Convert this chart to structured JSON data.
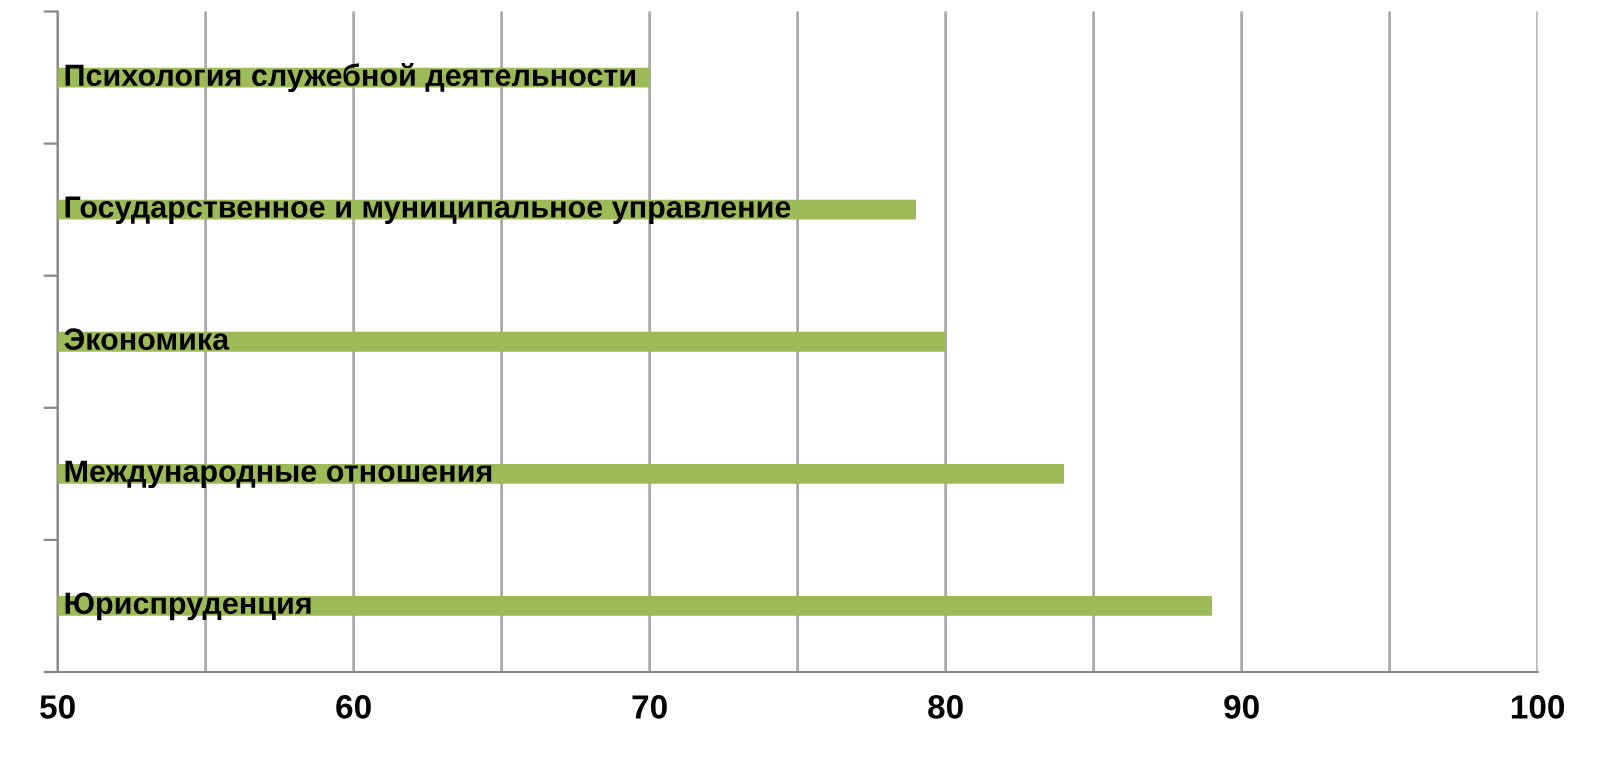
{
  "chart_data": {
    "type": "bar",
    "orientation": "horizontal",
    "categories": [
      "Психология служебной деятельности",
      "Государственное и муниципальное управление",
      "Экономика",
      "Международные отношения",
      "Юриспруденция"
    ],
    "values": [
      70,
      79,
      80,
      84,
      89
    ],
    "color": "#9bbb59",
    "xlim": [
      50,
      100
    ],
    "xticks": [
      50,
      {
        "value": 55,
        "label": null
      },
      60,
      {
        "value": 65,
        "label": null
      },
      70,
      {
        "value": 75,
        "label": null
      },
      80,
      {
        "value": 85,
        "label": null
      },
      90,
      {
        "value": 95,
        "label": null
      },
      100
    ],
    "grid": "x",
    "legend": false
  }
}
